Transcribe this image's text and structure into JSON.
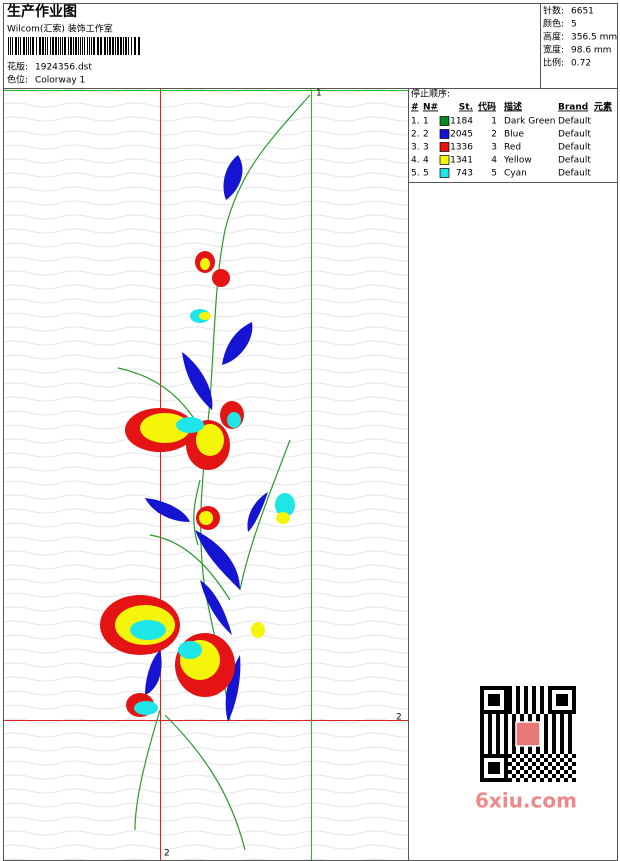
{
  "header": {
    "title": "生产作业图",
    "company": "Wilcom(汇索) 装饰工作室",
    "design_label": "花版:",
    "design": "1924356.dst",
    "colorway_label": "色位:",
    "colorway": "Colorway 1"
  },
  "stats": [
    {
      "label": "针数:",
      "value": "6651"
    },
    {
      "label": "颜色:",
      "value": "5"
    },
    {
      "label": "高度:",
      "value": "356.5 mm"
    },
    {
      "label": "宽度:",
      "value": "98.6 mm"
    },
    {
      "label": "比例:",
      "value": "0.72"
    }
  ],
  "table": {
    "title": "停止顺序:",
    "headers": [
      "#",
      "N#",
      "St.",
      "代码",
      "描述",
      "Brand",
      "元素"
    ],
    "rows": [
      {
        "index": "1.",
        "needle": "1",
        "stitches": 1184,
        "color": "#0a8a1e",
        "code": "1",
        "name": "Dark Green",
        "brand": "Default"
      },
      {
        "index": "2.",
        "needle": "2",
        "stitches": 2045,
        "color": "#1414d2",
        "code": "2",
        "name": "Blue",
        "brand": "Default"
      },
      {
        "index": "3.",
        "needle": "3",
        "stitches": 1336,
        "color": "#e41414",
        "code": "3",
        "name": "Red",
        "brand": "Default"
      },
      {
        "index": "4.",
        "needle": "4",
        "stitches": 1341,
        "color": "#f5f50a",
        "code": "4",
        "name": "Yellow",
        "brand": "Default"
      },
      {
        "index": "5.",
        "needle": "5",
        "stitches": 743,
        "color": "#1ee6e6",
        "code": "5",
        "name": "Cyan",
        "brand": "Default"
      }
    ]
  },
  "guides": {
    "top_label": "1",
    "right_label": "2",
    "bottom_label": "2"
  },
  "watermark": "6xiu.com"
}
